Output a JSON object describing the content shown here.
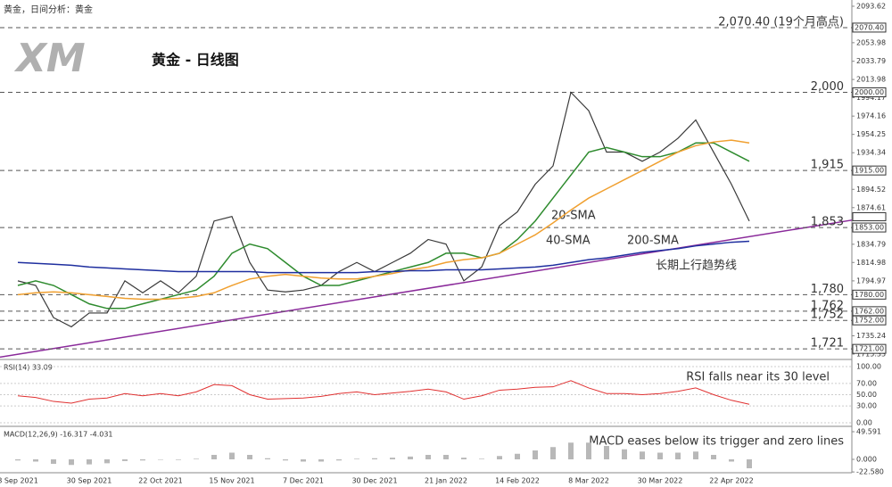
{
  "chart_data": {
    "type": "line",
    "header": "黄金，日间分析：黄金",
    "logo": "XM",
    "title": "黄金 - 日线图",
    "categories": [
      "8 Sep 2021",
      null,
      null,
      null,
      "30 Sep 2021",
      null,
      null,
      null,
      "22 Oct 2021",
      null,
      null,
      null,
      "15 Nov 2021",
      null,
      null,
      null,
      "7 Dec 2021",
      null,
      null,
      null,
      "30 Dec 2021",
      null,
      null,
      null,
      "21 Jan 2022",
      null,
      null,
      null,
      "14 Feb 2022",
      null,
      null,
      null,
      "8 Mar 2022",
      null,
      null,
      null,
      "30 Mar 2022",
      null,
      null,
      null,
      "22 Apr 2022",
      null
    ],
    "series": [
      {
        "name": "",
        "color": "#3a3a3a",
        "values": [
          1795,
          1790,
          1755,
          1745,
          1760,
          1760,
          1795,
          1782,
          1795,
          1782,
          1800,
          1860,
          1865,
          1815,
          1785,
          1783,
          1785,
          1790,
          1805,
          1815,
          1805,
          1815,
          1825,
          1840,
          1835,
          1795,
          1810,
          1855,
          1870,
          1900,
          1920,
          2000,
          1980,
          1935,
          1935,
          1925,
          1935,
          1950,
          1970,
          1935,
          1900,
          1860
        ]
      },
      {
        "name": "20-SMA",
        "color": "#2e8b2e",
        "values": [
          1790,
          1795,
          1790,
          1780,
          1770,
          1765,
          1765,
          1770,
          1775,
          1780,
          1785,
          1800,
          1825,
          1835,
          1830,
          1815,
          1800,
          1790,
          1790,
          1795,
          1800,
          1805,
          1810,
          1815,
          1825,
          1825,
          1820,
          1825,
          1840,
          1860,
          1885,
          1910,
          1935,
          1940,
          1935,
          1930,
          1930,
          1935,
          1945,
          1945,
          1935,
          1925
        ]
      },
      {
        "name": "40-SMA",
        "color": "#f0a030",
        "values": [
          1780,
          1782,
          1783,
          1782,
          1780,
          1778,
          1776,
          1775,
          1775,
          1776,
          1778,
          1782,
          1790,
          1797,
          1800,
          1802,
          1800,
          1798,
          1797,
          1797,
          1800,
          1803,
          1807,
          1810,
          1815,
          1818,
          1820,
          1825,
          1835,
          1845,
          1858,
          1872,
          1885,
          1895,
          1905,
          1915,
          1925,
          1935,
          1942,
          1946,
          1948,
          1945
        ]
      },
      {
        "name": "200-SMA",
        "color": "#1f2f9f",
        "values": [
          1815,
          1814,
          1813,
          1812,
          1810,
          1809,
          1808,
          1807,
          1806,
          1805,
          1805,
          1805,
          1805,
          1805,
          1804,
          1804,
          1804,
          1804,
          1804,
          1804,
          1805,
          1805,
          1806,
          1806,
          1807,
          1807,
          1807,
          1808,
          1809,
          1810,
          1812,
          1815,
          1818,
          1820,
          1823,
          1826,
          1828,
          1830,
          1833,
          1835,
          1837,
          1838
        ]
      }
    ],
    "trendline": {
      "name": "长期上行趋势线",
      "color": "#8a2a9a",
      "start": 1712,
      "end": 1861
    },
    "levels": [
      {
        "value": 2070.4,
        "label": "2070.40",
        "note": "2,070.40 (19个月高点)",
        "color": "#e02020"
      },
      {
        "value": 2000,
        "label": "2000.00",
        "note": "2,000",
        "color": "#e02020"
      },
      {
        "value": 1915,
        "label": "1915.00",
        "note": "1,915",
        "color": "#2e8b2e"
      },
      {
        "value": 1853,
        "label": "1853.00",
        "note": "1,853",
        "color": "#2e8b2e"
      },
      {
        "value": 1780,
        "label": "1780.00",
        "note": "1,780",
        "color": "#2e8b2e"
      },
      {
        "value": 1762,
        "label": "1762.00",
        "note": "1,762",
        "color": "#2e8b2e"
      },
      {
        "value": 1752,
        "label": "1752.00",
        "note": "1,752",
        "color": "#2e8b2e"
      },
      {
        "value": 1721,
        "label": "1721.00",
        "note": "1,721",
        "color": "#2e8b2e"
      }
    ],
    "last_price": 1859.42,
    "ylim": [
      1715.33,
      2093.62
    ],
    "yticks": [
      2093.62,
      2053.98,
      2033.79,
      2013.98,
      1994.17,
      1974.16,
      1954.25,
      1934.34,
      1894.52,
      1874.61,
      1834.79,
      1814.98,
      1794.97,
      1735.24,
      1715.33
    ],
    "rsi": {
      "label": "RSI(14) 33.09",
      "annotation": "RSI falls near its 30 level",
      "color": "#e03030",
      "values": [
        48,
        45,
        38,
        35,
        42,
        44,
        52,
        48,
        52,
        48,
        55,
        68,
        66,
        50,
        42,
        43,
        44,
        47,
        52,
        55,
        50,
        53,
        56,
        60,
        55,
        42,
        48,
        58,
        60,
        63,
        64,
        75,
        62,
        52,
        52,
        50,
        52,
        56,
        62,
        50,
        40,
        33
      ],
      "ylim": [
        0,
        100
      ],
      "yticks": [
        {
          "value": 100,
          "label": "100.00"
        },
        {
          "value": 70,
          "label": "70.00"
        },
        {
          "value": 50,
          "label": "50.00"
        },
        {
          "value": 30,
          "label": "30.00"
        },
        {
          "value": 0,
          "label": "0.00"
        }
      ]
    },
    "macd": {
      "label": "MACD(12,26,9) -16.317 -4.031",
      "annotation": "MACD eases below its trigger and zero lines",
      "color": "#b8b8b8",
      "values": [
        -2,
        -4,
        -8,
        -10,
        -9,
        -7,
        -3,
        -2,
        0,
        -1,
        1,
        8,
        12,
        8,
        2,
        -2,
        -4,
        -4,
        -2,
        1,
        2,
        3,
        5,
        8,
        8,
        3,
        1,
        6,
        10,
        16,
        22,
        30,
        30,
        24,
        18,
        14,
        12,
        12,
        14,
        8,
        -4,
        -16
      ],
      "ylim": [
        -24,
        56
      ],
      "yticks": [
        49.591,
        {
          "value": 0,
          "label": "0.000"
        },
        {
          "value": -22.58,
          "label": "-22.580"
        }
      ]
    }
  }
}
